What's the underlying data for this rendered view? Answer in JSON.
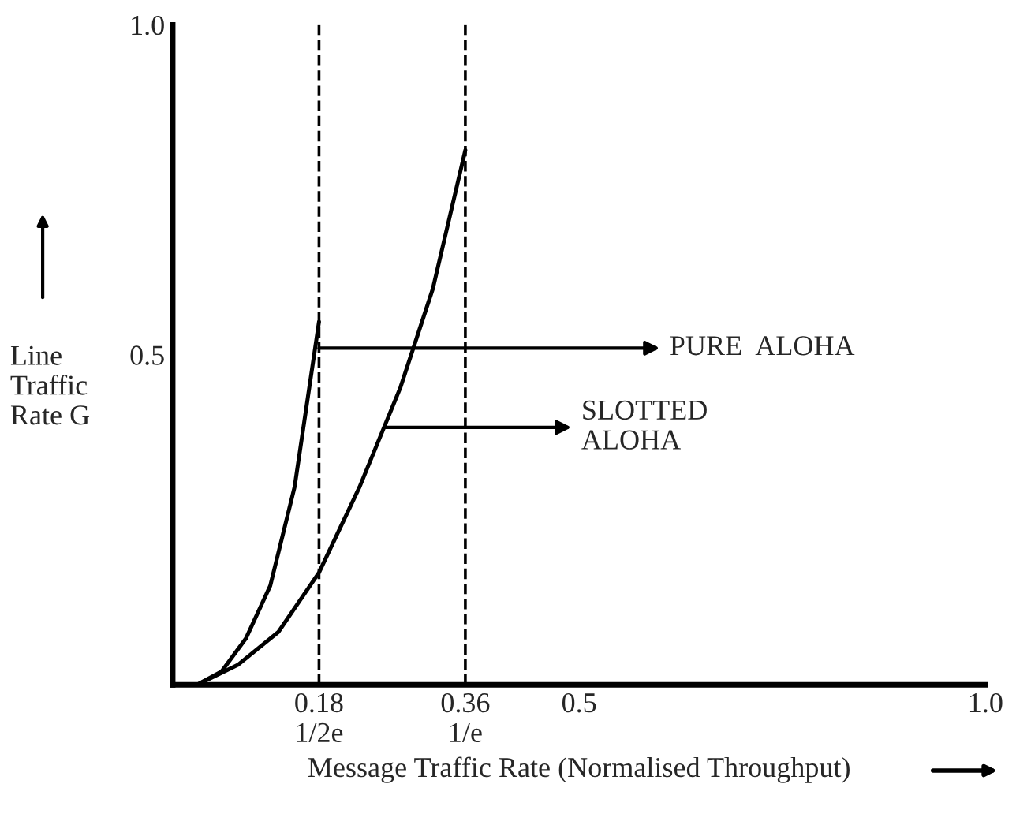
{
  "chart_data": {
    "type": "line",
    "xlabel": "Message Traffic Rate (Normalised Throughput)",
    "ylabel": "Line\nTraffic\nRate G",
    "xlim": [
      0,
      1.0
    ],
    "ylim": [
      0,
      1.0
    ],
    "xticks": [
      {
        "value": 0.18,
        "label": "0.18\n1/2e"
      },
      {
        "value": 0.36,
        "label": "0.36\n1/e"
      },
      0.5,
      {
        "value": 1.0,
        "label": "1.0"
      }
    ],
    "yticks": [
      0.5,
      {
        "value": 1.0,
        "label": "1.0"
      }
    ],
    "series": [
      {
        "color": "#000000",
        "x": [
          0.03,
          0.06,
          0.09,
          0.12,
          0.15,
          0.18
        ],
        "values": [
          0,
          0.02,
          0.07,
          0.15,
          0.3,
          0.55
        ]
      },
      {
        "color": "#000000",
        "x": [
          0.03,
          0.08,
          0.13,
          0.18,
          0.23,
          0.28,
          0.32,
          0.36
        ],
        "values": [
          0,
          0.03,
          0.08,
          0.17,
          0.3,
          0.45,
          0.6,
          0.81
        ]
      }
    ],
    "ref_lines": [
      {
        "axis": "x",
        "value": 0.18,
        "color": "#000000",
        "line_style": "dashed"
      },
      {
        "axis": "x",
        "value": 0.36,
        "color": "#000000",
        "line_style": "dashed"
      }
    ],
    "annotations": [
      {
        "text": "PURE  ALOHA",
        "x": 0.18,
        "y": 0.51
      },
      {
        "text": "SLOTTED\nALOHA",
        "x": 0.26,
        "y": 0.39
      }
    ],
    "grid": false,
    "legend": false,
    "marker": "none",
    "line_style": "solid"
  }
}
